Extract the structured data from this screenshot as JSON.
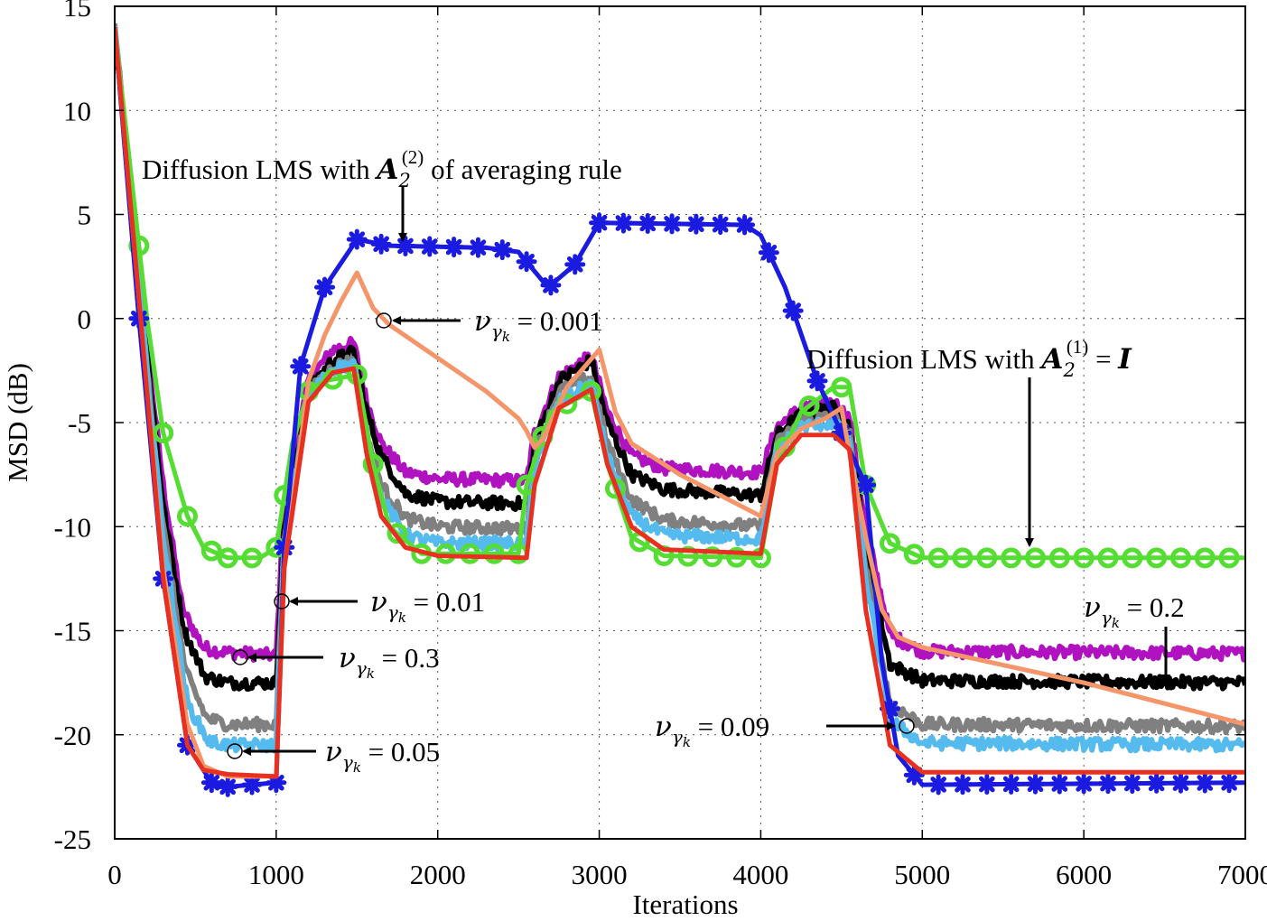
{
  "chart_data": {
    "type": "line",
    "xlabel": "Iterations",
    "ylabel": "MSD (dB)",
    "xlim": [
      0,
      7000
    ],
    "ylim": [
      -25,
      15
    ],
    "xticks": [
      0,
      1000,
      2000,
      3000,
      4000,
      5000,
      6000,
      7000
    ],
    "yticks": [
      15,
      10,
      5,
      0,
      -5,
      -10,
      -15,
      -20,
      -25
    ],
    "xtick_labels": [
      "0",
      "1000",
      "2000",
      "3000",
      "4000",
      "5000",
      "6000",
      "7000"
    ],
    "ytick_labels": [
      "15",
      "10",
      "5",
      "0",
      "-5",
      "-10",
      "-15",
      "-20",
      "-25"
    ],
    "grid": true,
    "series": [
      {
        "name": "Diffusion LMS with A2(2) of averaging rule",
        "color": "#1a1ae0",
        "marker": "asterisk",
        "points": [
          [
            0,
            14
          ],
          [
            150,
            0
          ],
          [
            300,
            -12.5
          ],
          [
            450,
            -20.5
          ],
          [
            600,
            -22.3
          ],
          [
            700,
            -22.5
          ],
          [
            1000,
            -22.3
          ],
          [
            1050,
            -11
          ],
          [
            1150,
            -2.3
          ],
          [
            1300,
            1.5
          ],
          [
            1500,
            3.8
          ],
          [
            1700,
            3.5
          ],
          [
            2300,
            3.4
          ],
          [
            2500,
            3.2
          ],
          [
            2650,
            1.8
          ],
          [
            2700,
            1.6
          ],
          [
            2850,
            2.6
          ],
          [
            3000,
            4.6
          ],
          [
            3900,
            4.5
          ],
          [
            4000,
            4
          ],
          [
            4150,
            1.5
          ],
          [
            4350,
            -3
          ],
          [
            4500,
            -5.5
          ],
          [
            4650,
            -8
          ],
          [
            4750,
            -16.5
          ],
          [
            4850,
            -21
          ],
          [
            5000,
            -22.4
          ],
          [
            7000,
            -22.3
          ]
        ],
        "marker_x": [
          150,
          300,
          450,
          600,
          700,
          850,
          1000,
          1050,
          1150,
          1300,
          1500,
          1650,
          1800,
          1950,
          2100,
          2250,
          2400,
          2550,
          2700,
          2850,
          3000,
          3150,
          3300,
          3450,
          3600,
          3750,
          3900,
          4050,
          4200,
          4350,
          4500,
          4650,
          4800,
          4950,
          5100,
          5250,
          5400,
          5550,
          5700,
          5850,
          6000,
          6150,
          6300,
          6450,
          6600,
          6750,
          6900
        ]
      },
      {
        "name": "Diffusion LMS with A2(1) = I",
        "color": "#55dd33",
        "marker": "circle",
        "points": [
          [
            0,
            14
          ],
          [
            100,
            7
          ],
          [
            200,
            0
          ],
          [
            300,
            -5.5
          ],
          [
            450,
            -9.5
          ],
          [
            550,
            -11
          ],
          [
            700,
            -11.5
          ],
          [
            900,
            -11.5
          ],
          [
            1000,
            -11
          ],
          [
            1100,
            -6
          ],
          [
            1200,
            -3.5
          ],
          [
            1300,
            -3
          ],
          [
            1500,
            -2.7
          ],
          [
            1600,
            -7
          ],
          [
            1700,
            -10
          ],
          [
            1900,
            -11.3
          ],
          [
            2500,
            -11.3
          ],
          [
            2550,
            -8
          ],
          [
            2700,
            -4.5
          ],
          [
            2950,
            -3.5
          ],
          [
            3050,
            -7
          ],
          [
            3200,
            -10.5
          ],
          [
            3400,
            -11.4
          ],
          [
            4000,
            -11.5
          ],
          [
            4100,
            -7
          ],
          [
            4250,
            -4.5
          ],
          [
            4450,
            -3.3
          ],
          [
            4550,
            -3.3
          ],
          [
            4650,
            -8
          ],
          [
            4800,
            -10.8
          ],
          [
            5000,
            -11.5
          ],
          [
            7000,
            -11.5
          ]
        ],
        "marker_x": [
          150,
          300,
          450,
          600,
          700,
          850,
          1000,
          1050,
          1200,
          1350,
          1500,
          1600,
          1750,
          1900,
          2050,
          2200,
          2350,
          2500,
          2550,
          2650,
          2800,
          2950,
          3100,
          3250,
          3400,
          3550,
          3700,
          3850,
          4000,
          4150,
          4300,
          4500,
          4650,
          4800,
          4950,
          5100,
          5250,
          5400,
          5550,
          5700,
          5850,
          6000,
          6150,
          6300,
          6450,
          6600,
          6750,
          6900
        ]
      },
      {
        "name": "nu = 0.3",
        "color": "#b012c0",
        "noisy": true,
        "points": [
          [
            0,
            14
          ],
          [
            150,
            2
          ],
          [
            300,
            -8
          ],
          [
            420,
            -14
          ],
          [
            550,
            -15.8
          ],
          [
            650,
            -16
          ],
          [
            1000,
            -16.2
          ],
          [
            1050,
            -9
          ],
          [
            1200,
            -3
          ],
          [
            1350,
            -1.5
          ],
          [
            1480,
            -1.2
          ],
          [
            1560,
            -4
          ],
          [
            1650,
            -6
          ],
          [
            1800,
            -7.4
          ],
          [
            2000,
            -7.7
          ],
          [
            2550,
            -7.8
          ],
          [
            2600,
            -5.5
          ],
          [
            2750,
            -2.8
          ],
          [
            2950,
            -1.8
          ],
          [
            3050,
            -4.5
          ],
          [
            3200,
            -6.6
          ],
          [
            3400,
            -7.2
          ],
          [
            4000,
            -7.4
          ],
          [
            4100,
            -5.2
          ],
          [
            4250,
            -4.3
          ],
          [
            4450,
            -4
          ],
          [
            4550,
            -4.8
          ],
          [
            4650,
            -10
          ],
          [
            4800,
            -15.2
          ],
          [
            5000,
            -16
          ],
          [
            7000,
            -16.1
          ]
        ]
      },
      {
        "name": "nu = 0.2",
        "color": "#000000",
        "noisy": true,
        "points": [
          [
            0,
            14
          ],
          [
            150,
            2
          ],
          [
            300,
            -9
          ],
          [
            430,
            -15
          ],
          [
            560,
            -17.2
          ],
          [
            700,
            -17.5
          ],
          [
            1000,
            -17.5
          ],
          [
            1050,
            -10
          ],
          [
            1200,
            -3.4
          ],
          [
            1350,
            -2
          ],
          [
            1480,
            -1.6
          ],
          [
            1560,
            -4.5
          ],
          [
            1650,
            -6.6
          ],
          [
            1800,
            -8.4
          ],
          [
            2000,
            -8.8
          ],
          [
            2550,
            -8.9
          ],
          [
            2600,
            -6
          ],
          [
            2750,
            -3
          ],
          [
            2950,
            -2
          ],
          [
            3050,
            -5
          ],
          [
            3200,
            -7.5
          ],
          [
            3400,
            -8.2
          ],
          [
            4000,
            -8.5
          ],
          [
            4100,
            -5.6
          ],
          [
            4250,
            -4.6
          ],
          [
            4450,
            -4.3
          ],
          [
            4550,
            -5.2
          ],
          [
            4650,
            -11
          ],
          [
            4800,
            -16.6
          ],
          [
            5000,
            -17.4
          ],
          [
            7000,
            -17.5
          ]
        ]
      },
      {
        "name": "nu = 0.09",
        "color": "#808080",
        "noisy": true,
        "points": [
          [
            0,
            14
          ],
          [
            150,
            1.5
          ],
          [
            300,
            -10
          ],
          [
            440,
            -17
          ],
          [
            570,
            -19.2
          ],
          [
            700,
            -19.5
          ],
          [
            1000,
            -19.5
          ],
          [
            1050,
            -10.5
          ],
          [
            1200,
            -3.6
          ],
          [
            1350,
            -2.3
          ],
          [
            1480,
            -2
          ],
          [
            1560,
            -5.5
          ],
          [
            1650,
            -8
          ],
          [
            1800,
            -9.6
          ],
          [
            2000,
            -10
          ],
          [
            2550,
            -10.1
          ],
          [
            2600,
            -6.5
          ],
          [
            2750,
            -3.5
          ],
          [
            2950,
            -2.8
          ],
          [
            3050,
            -6
          ],
          [
            3200,
            -8.7
          ],
          [
            3400,
            -9.7
          ],
          [
            4000,
            -10
          ],
          [
            4100,
            -6
          ],
          [
            4250,
            -4.9
          ],
          [
            4450,
            -4.7
          ],
          [
            4550,
            -5.6
          ],
          [
            4650,
            -12
          ],
          [
            4800,
            -18.5
          ],
          [
            5000,
            -19.5
          ],
          [
            7000,
            -19.6
          ]
        ]
      },
      {
        "name": "nu = 0.05",
        "color": "#55bbee",
        "noisy": true,
        "points": [
          [
            0,
            14
          ],
          [
            150,
            1.5
          ],
          [
            300,
            -10.5
          ],
          [
            450,
            -18.5
          ],
          [
            580,
            -20.3
          ],
          [
            700,
            -20.5
          ],
          [
            1000,
            -20.5
          ],
          [
            1050,
            -11
          ],
          [
            1200,
            -3.7
          ],
          [
            1350,
            -2.4
          ],
          [
            1480,
            -2.2
          ],
          [
            1560,
            -6
          ],
          [
            1650,
            -8.6
          ],
          [
            1800,
            -10.4
          ],
          [
            2000,
            -10.8
          ],
          [
            2550,
            -10.8
          ],
          [
            2600,
            -7
          ],
          [
            2750,
            -4
          ],
          [
            2950,
            -3.1
          ],
          [
            3050,
            -6.6
          ],
          [
            3200,
            -9.5
          ],
          [
            3400,
            -10.4
          ],
          [
            4000,
            -10.6
          ],
          [
            4100,
            -6.3
          ],
          [
            4250,
            -5.2
          ],
          [
            4450,
            -5
          ],
          [
            4550,
            -5.8
          ],
          [
            4650,
            -12.5
          ],
          [
            4800,
            -19.3
          ],
          [
            5000,
            -20.4
          ],
          [
            7000,
            -20.5
          ]
        ]
      },
      {
        "name": "nu = 0.001",
        "color": "#f4956a",
        "points": [
          [
            0,
            14
          ],
          [
            150,
            1
          ],
          [
            300,
            -12
          ],
          [
            450,
            -19.5
          ],
          [
            550,
            -21.5
          ],
          [
            700,
            -22
          ],
          [
            1000,
            -22
          ],
          [
            1050,
            -12
          ],
          [
            1200,
            -3
          ],
          [
            1300,
            -0.8
          ],
          [
            1400,
            0.8
          ],
          [
            1500,
            2.2
          ],
          [
            1600,
            0.5
          ],
          [
            1700,
            -0.3
          ],
          [
            2000,
            -1.9
          ],
          [
            2300,
            -3.5
          ],
          [
            2500,
            -4.8
          ],
          [
            2550,
            -5.4
          ],
          [
            2600,
            -6.2
          ],
          [
            2650,
            -5.8
          ],
          [
            2800,
            -3.3
          ],
          [
            3000,
            -1.5
          ],
          [
            3100,
            -4.5
          ],
          [
            3200,
            -6
          ],
          [
            3500,
            -7.5
          ],
          [
            4000,
            -9.5
          ],
          [
            4100,
            -6.5
          ],
          [
            4250,
            -5.3
          ],
          [
            4400,
            -4.8
          ],
          [
            4500,
            -4.3
          ],
          [
            4550,
            -6.5
          ],
          [
            4650,
            -10.5
          ],
          [
            4750,
            -14
          ],
          [
            4850,
            -15.3
          ],
          [
            5000,
            -15.8
          ],
          [
            6000,
            -17.5
          ],
          [
            7000,
            -19.5
          ]
        ]
      },
      {
        "name": "nu = 0.01",
        "color": "#e83020",
        "points": [
          [
            0,
            14
          ],
          [
            150,
            1
          ],
          [
            300,
            -12.5
          ],
          [
            450,
            -20.5
          ],
          [
            550,
            -21.7
          ],
          [
            700,
            -21.9
          ],
          [
            1000,
            -22
          ],
          [
            1050,
            -12
          ],
          [
            1200,
            -4
          ],
          [
            1350,
            -2.6
          ],
          [
            1480,
            -2.4
          ],
          [
            1560,
            -6.5
          ],
          [
            1650,
            -9.5
          ],
          [
            1800,
            -11
          ],
          [
            2000,
            -11.4
          ],
          [
            2550,
            -11.5
          ],
          [
            2600,
            -8
          ],
          [
            2750,
            -4.3
          ],
          [
            2950,
            -3.4
          ],
          [
            3050,
            -7
          ],
          [
            3200,
            -10
          ],
          [
            3400,
            -11.1
          ],
          [
            4000,
            -11.3
          ],
          [
            4100,
            -7
          ],
          [
            4250,
            -5.6
          ],
          [
            4450,
            -5.6
          ],
          [
            4550,
            -6.3
          ],
          [
            4650,
            -14
          ],
          [
            4800,
            -20.5
          ],
          [
            5000,
            -21.8
          ],
          [
            7000,
            -21.8
          ]
        ]
      }
    ],
    "annotations": [
      {
        "id": "a2-avg",
        "prefix": "Diffusion LMS with ",
        "suffix": " of averaging rule",
        "math": "A2(2)"
      },
      {
        "id": "a2-i",
        "prefix": "Diffusion LMS with ",
        "suffix": "",
        "math": "A2(1) = I"
      },
      {
        "id": "nu001",
        "value": "0.001"
      },
      {
        "id": "nu01",
        "value": "0.01"
      },
      {
        "id": "nu3",
        "value": "0.3"
      },
      {
        "id": "nu05",
        "value": "0.05"
      },
      {
        "id": "nu2",
        "value": "0.2"
      },
      {
        "id": "nu09",
        "value": "0.09"
      }
    ]
  }
}
